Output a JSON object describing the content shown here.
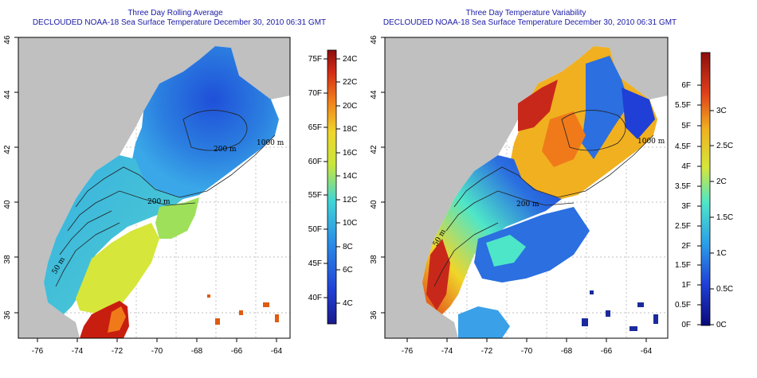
{
  "left_panel": {
    "title": "Three Day Rolling Average",
    "subtitle": "DECLOUDED NOAA-18 Sea Surface Temperature December 30, 2010 06:31 GMT",
    "x_ticks": [
      "-76",
      "-74",
      "-72",
      "-70",
      "-68",
      "-66",
      "-64"
    ],
    "y_ticks": [
      "46",
      "44",
      "42",
      "40",
      "38",
      "36"
    ],
    "colorbar_c": [
      "24C",
      "22C",
      "20C",
      "18C",
      "16C",
      "14C",
      "12C",
      "10C",
      "8C",
      "6C",
      "4C"
    ],
    "colorbar_f": [
      "75F",
      "70F",
      "65F",
      "60F",
      "55F",
      "50F",
      "45F",
      "40F"
    ],
    "contour_labels": [
      "200 m",
      "1000 m",
      "50 m",
      "200 m"
    ]
  },
  "right_panel": {
    "title": "Three Day Temperature Variability",
    "subtitle": "DECLOUDED NOAA-18 Sea Surface Temperature December 30, 2010 06:31 GMT",
    "x_ticks": [
      "-76",
      "-74",
      "-72",
      "-70",
      "-68",
      "-66",
      "-64"
    ],
    "y_ticks": [
      "46",
      "44",
      "42",
      "40",
      "38",
      "36"
    ],
    "colorbar_c": [
      "3C",
      "2.5C",
      "2C",
      "1.5C",
      "1C",
      "0.5C",
      "0C"
    ],
    "colorbar_f": [
      "6F",
      "5.5F",
      "5F",
      "4.5F",
      "4F",
      "3.5F",
      "3F",
      "2.5F",
      "2F",
      "1.5F",
      "1F",
      "0.5F",
      "0F"
    ],
    "contour_labels": [
      "200 m",
      "1000 m",
      "50 m"
    ]
  },
  "colors": {
    "title": "#1a1aa6",
    "land": "#c0c0c0",
    "no_data": "#ffffff"
  }
}
